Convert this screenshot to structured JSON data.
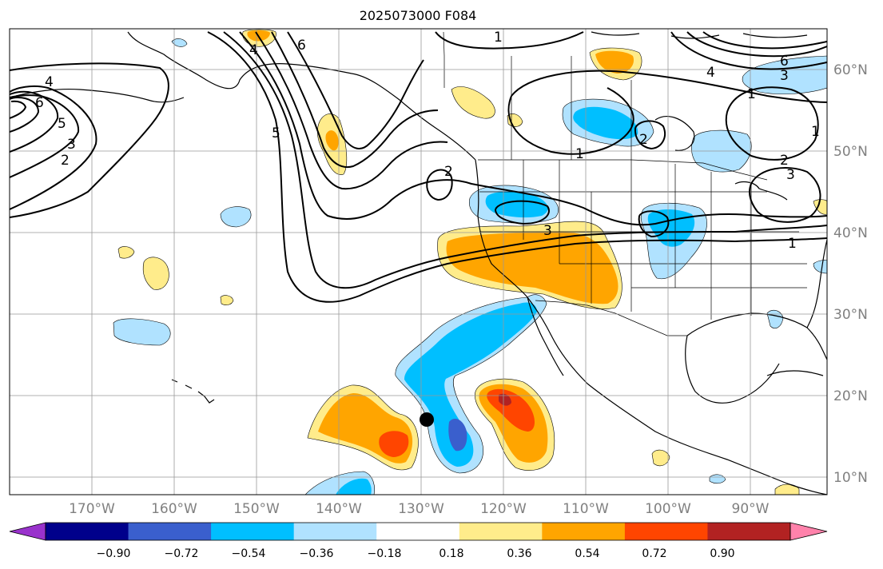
{
  "title": "2025073000 F084",
  "lon_labels": [
    "170°W",
    "160°W",
    "150°W",
    "140°W",
    "130°W",
    "120°W",
    "110°W",
    "100°W",
    "90°W"
  ],
  "lat_labels": [
    "60°N",
    "50°N",
    "40°N",
    "30°N",
    "20°N",
    "10°N"
  ],
  "colorbar": {
    "labels": [
      "−0.90",
      "−0.72",
      "−0.54",
      "−0.36",
      "−0.18",
      "0.18",
      "0.36",
      "0.54",
      "0.72",
      "0.90"
    ],
    "colors": [
      "#9932cc",
      "#00008b",
      "#3a5fcd",
      "#00bfff",
      "#b0e2ff",
      "#ffffff",
      "#ffec8b",
      "#ffa500",
      "#ff4500",
      "#b22222",
      "#ff82ab"
    ]
  },
  "contour_labels": [
    "1",
    "1",
    "1",
    "1",
    "1",
    "2",
    "2",
    "2",
    "2",
    "3",
    "3",
    "3",
    "3",
    "4",
    "4",
    "4",
    "5",
    "5",
    "6",
    "6",
    "6"
  ],
  "colors": {
    "positive_light": "#ffec8b",
    "positive_mid": "#ffa500",
    "positive_strong": "#ff4500",
    "negative_light": "#b0e2ff",
    "negative_mid": "#00bfff",
    "negative_strong": "#3a5fcd",
    "grid": "#999999",
    "coast": "#000000"
  }
}
